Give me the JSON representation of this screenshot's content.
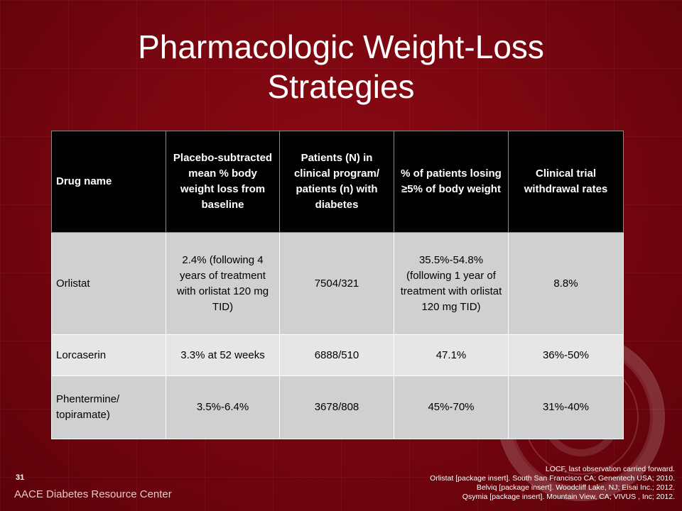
{
  "slide": {
    "title": "Pharmacologic Weight-Loss\nStrategies",
    "number": "31",
    "footer_brand": "AACE Diabetes Resource Center"
  },
  "table": {
    "headers": [
      "Drug name",
      "Placebo-subtracted mean % body weight loss from baseline",
      "Patients (N) in clinical program/ patients (n) with diabetes",
      "% of patients losing ≥5% of body weight",
      "Clinical trial withdrawal rates"
    ],
    "rows": [
      [
        "Orlistat",
        "2.4% (following 4 years of treatment with orlistat 120 mg TID)",
        "7504/321",
        "35.5%-54.8% (following 1 year of treatment with orlistat 120 mg TID)",
        "8.8%"
      ],
      [
        "Lorcaserin",
        "3.3% at 52 weeks",
        "6888/510",
        "47.1%",
        "36%-50%"
      ],
      [
        "Phentermine/ topiramate)",
        "3.5%-6.4%",
        "3678/808",
        "45%-70%",
        "31%-40%"
      ]
    ]
  },
  "references": [
    "LOCF, last observation carried forward.",
    "Orlistat [package insert]. South San Francisco CA; Genentech USA; 2010.",
    "Belviq [package insert]. Woodcliff Lake, NJ; Eisai Inc.; 2012.",
    "Qsymia [package insert]. Mountain View, CA; VIVUS , Inc; 2012."
  ],
  "colors": {
    "background": "#7a0610",
    "header_bg": "#000000",
    "row_odd": "#d0d0d0",
    "row_even": "#e6e6e6"
  },
  "icons": [
    "aace-seal-watermark"
  ]
}
